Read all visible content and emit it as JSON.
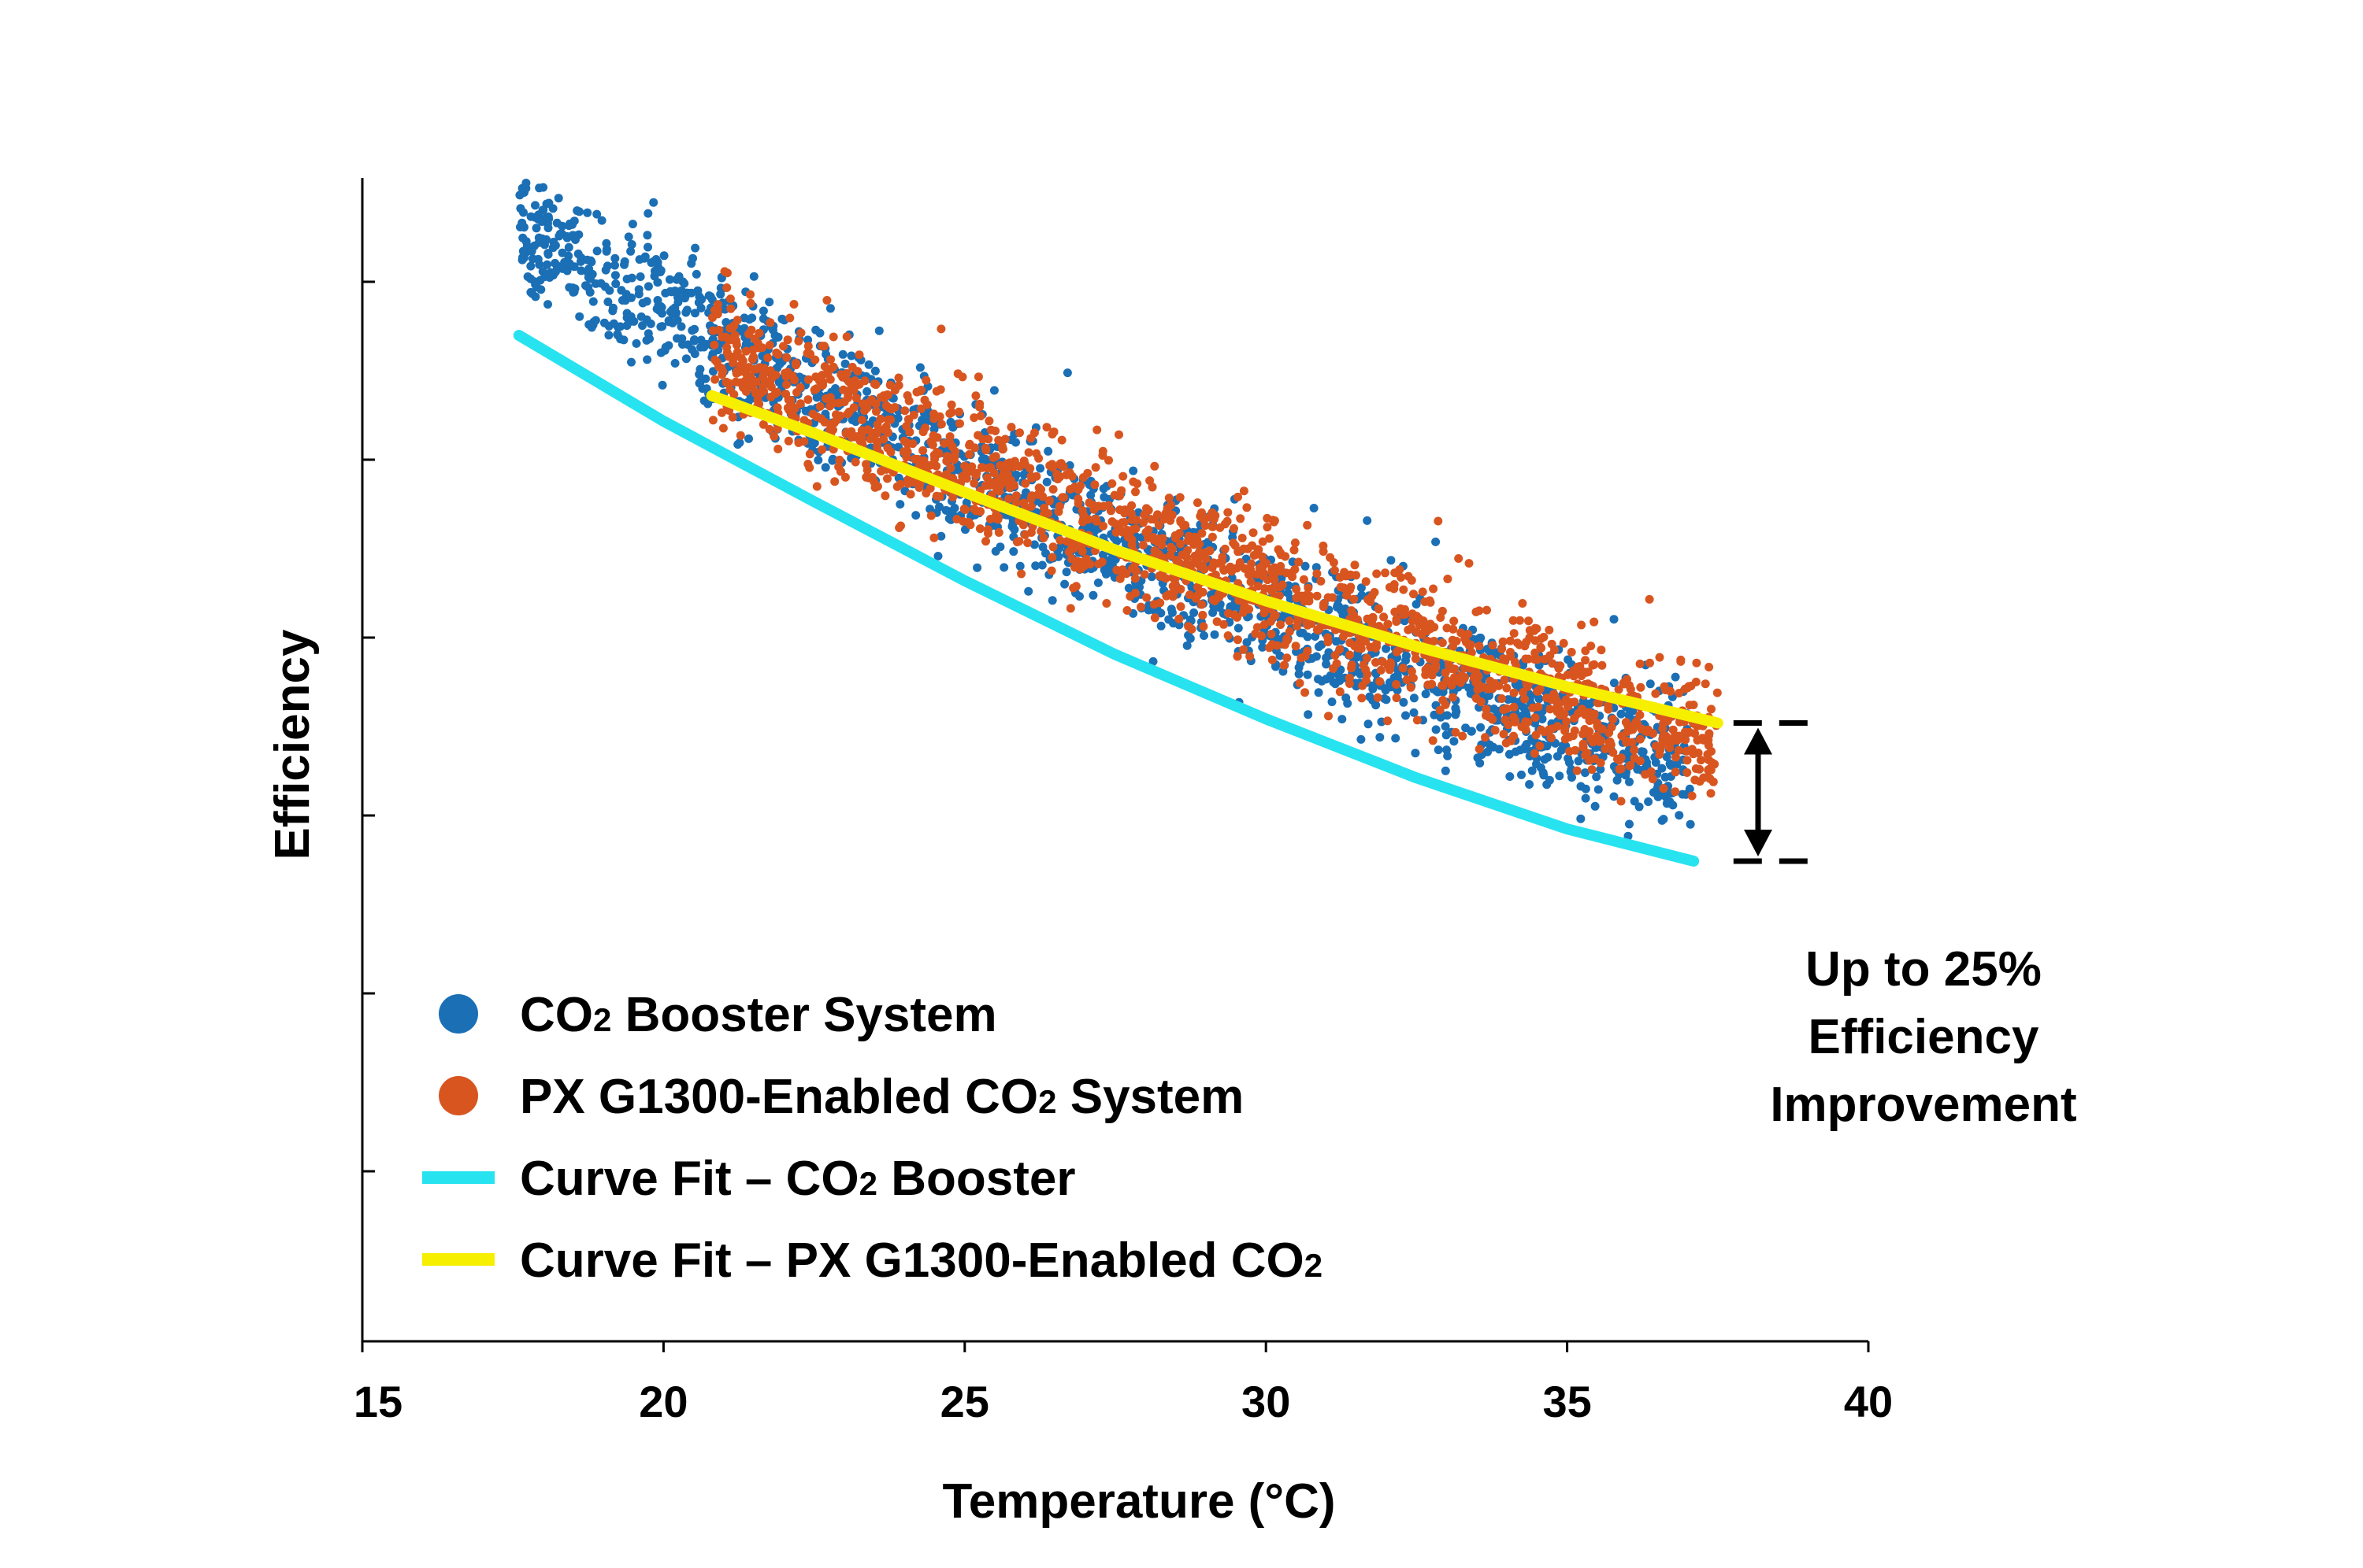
{
  "chart_data": {
    "type": "scatter",
    "title": "",
    "xlabel": "Temperature (°C)",
    "ylabel": "Efficiency",
    "xlim": [
      15,
      40
    ],
    "ylim": [
      0,
      1
    ],
    "x_ticks": [
      15,
      20,
      25,
      30,
      35,
      40
    ],
    "y_ticks_labeled": false,
    "grid": false,
    "legend_position": "bottom-left",
    "series": [
      {
        "name": "CO2 Booster System",
        "name_main": "CO",
        "name_sub": "2",
        "name_rest": " Booster System",
        "kind": "scatter",
        "color": "#1b6fb5",
        "x_range": [
          17.6,
          37.1
        ],
        "fit": {
          "a": 0.767,
          "b": -0.0255,
          "c": 0.00032
        }
      },
      {
        "name": "PX G1300-Enabled CO2 System",
        "name_main": "PX G1300-Enabled CO",
        "name_sub": "2",
        "name_rest": " System",
        "kind": "scatter",
        "color": "#d85520",
        "x_range": [
          20.8,
          37.5
        ],
        "fit": {
          "a": 0.756,
          "b": -0.0219,
          "c": 0.00023
        }
      },
      {
        "name": "Curve Fit – CO2 Booster",
        "name_main": "Curve Fit – CO",
        "name_sub": "2",
        "name_rest": " Booster",
        "kind": "line",
        "color": "#27e3f0",
        "x": [
          17.6,
          20,
          22.5,
          25,
          27.5,
          30,
          32.5,
          35,
          37.1
        ],
        "y": [
          0.75,
          0.686,
          0.626,
          0.567,
          0.512,
          0.464,
          0.42,
          0.382,
          0.358
        ]
      },
      {
        "name": "Curve Fit – PX G1300-Enabled CO2",
        "name_main": "Curve Fit – PX G1300-Enabled CO",
        "name_sub": "2",
        "name_rest": "",
        "kind": "line",
        "color": "#f7ef00",
        "x": [
          20.8,
          22.5,
          25,
          27.5,
          30,
          32.5,
          35,
          37.5
        ],
        "y": [
          0.705,
          0.677,
          0.633,
          0.59,
          0.552,
          0.518,
          0.488,
          0.461
        ]
      }
    ],
    "annotation": {
      "lines": [
        "Up to 25%",
        "Efficiency",
        "Improvement"
      ],
      "x": 37.5,
      "y_top": 0.461,
      "y_bottom": 0.358
    }
  }
}
